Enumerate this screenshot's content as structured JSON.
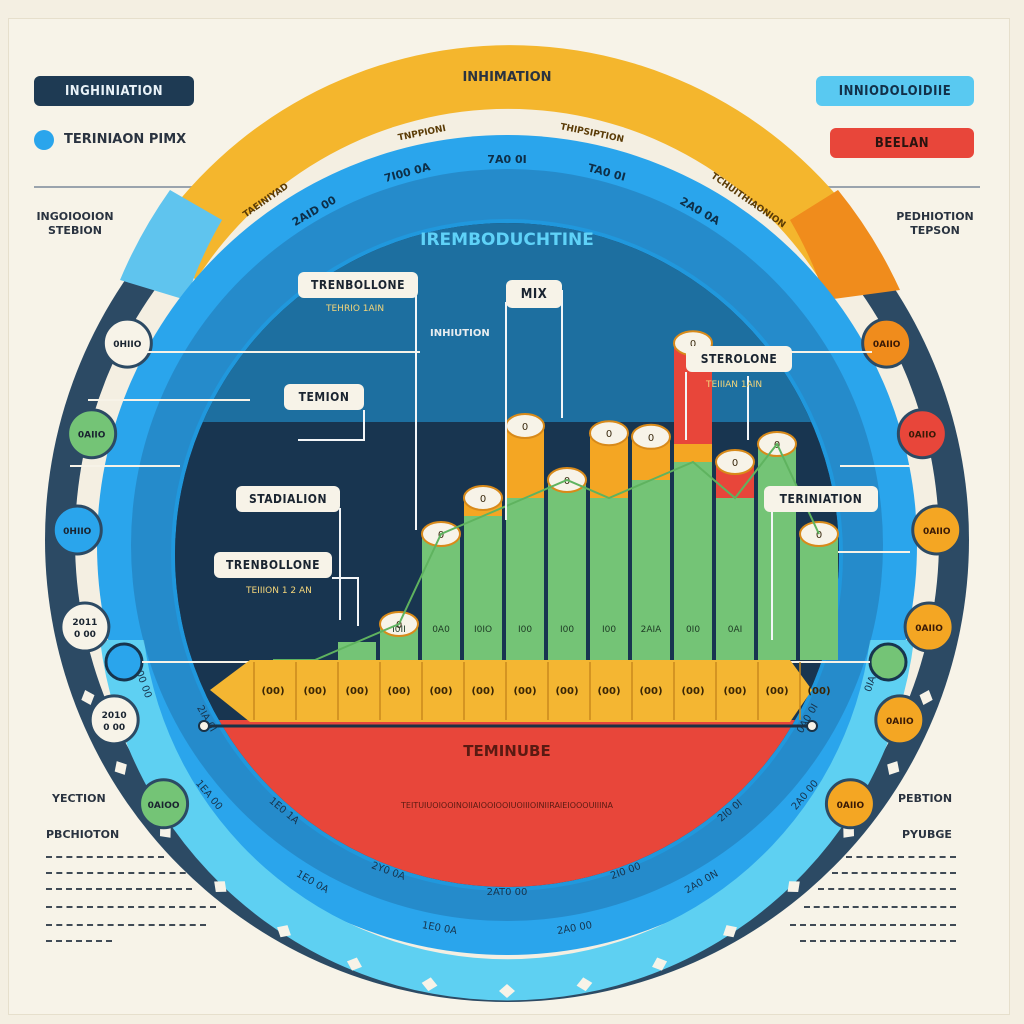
{
  "header": {
    "top_left_label": "INGHINIATION",
    "top_left_legend": "TERINIAON  PIMX",
    "top_right_label": "INNIODOLOIDIIE",
    "top_right_badge": "BEELAN",
    "arc_top_label": "INHIMATION",
    "left_side_label": "INGOIOOION\nSTEBION",
    "right_side_label": "PEDHIOTION\nTEPSON",
    "bottom_left_title": "YECTION",
    "bottom_left_subtitle": "PBCHIOTON",
    "bottom_right_title": "PEBTION",
    "bottom_right_subtitle": "PYUBGE"
  },
  "ring_labels": {
    "outer_top": [
      "TAEINIYAD",
      "TNPPIONI",
      "THIPSIPTION",
      "TCHUITHIAONION"
    ],
    "blue_top": [
      "2AID 00",
      "7I00 0A",
      "7A0 0I",
      "TA0 0I",
      "2A0 0A"
    ],
    "blue_center_title": "IREMBODUCHTINE",
    "red_title": "TEMINUBE",
    "red_sub": "TEITUIUOIOOINOIIAIOOIOOIUOIIIOINIIRAIEIOOOUIIINA",
    "bottom_ticks": [
      "2A00 00",
      "2IA 0I",
      "1EA 00",
      "1E0 1A",
      "1E0 0A",
      "2Y0 0A",
      "1E0 0A",
      "2AT0 00",
      "2A0 00",
      "2I0 00",
      "2A0 0N",
      "2I0 0I",
      "2A0 00",
      "0A0 0I",
      "0IA 0I"
    ]
  },
  "left_dots": [
    "0HIIO",
    "0AIIO",
    "0HIIO",
    "2011\n0 00",
    "2010\n0 00",
    "0AIOO"
  ],
  "right_dots": [
    "0AIIO",
    "0AIIO",
    "0AIIO",
    "0AIIO",
    "0AIIO",
    "0AIIO"
  ],
  "callouts": {
    "trenbollone_top": "TRENBOLLONE",
    "trenbollone_top_sub": "TEHRIO 1AIN",
    "mix": "MIX",
    "inhibition": "INHIUTION",
    "stebolone": "STEROLONE",
    "stebolone_sub": "TEIIIAN 1AIN",
    "temion": "TEMION",
    "stadialion": "STADIALION",
    "trenbollone_bottom": "TRENBOLLONE",
    "trenbollone_bottom_sub": "TEIIION 1 2 AN",
    "termination": "TERINIATION"
  },
  "colors": {
    "green": "#74c476",
    "orange": "#f4a623",
    "red": "#e8463a",
    "yellow": "#f3b632",
    "blue_ring": "#2aa5ec",
    "cyan_ring": "#5ed0f2",
    "navy": "#1e3a53",
    "gold_ring": "#f4b62d",
    "dark_ring": "#2c4a64"
  },
  "chart_data": {
    "type": "bar",
    "title": "IREMBODUCHTINE",
    "categories": [
      "(00)",
      "(00)",
      "(00)",
      "(00)",
      "(00)",
      "(00)",
      "(00)",
      "(00)",
      "(00)",
      "(00)",
      "(00)",
      "(00)",
      "(00)",
      "(00)"
    ],
    "bar_labels": [
      "",
      "",
      "",
      "I0II",
      "0A0",
      "I0IO",
      "I00",
      "I00",
      "I00",
      "2AIA",
      "0I0",
      "0AI",
      "",
      ""
    ],
    "series": [
      {
        "values": [
          0.0,
          0.0,
          0.5,
          1.0,
          3.5,
          4.0,
          4.5,
          5.0,
          4.5,
          5.0,
          5.5,
          4.5,
          6.0,
          3.5
        ]
      },
      {
        "values": [
          0,
          0,
          0,
          0,
          0,
          0.5,
          2.0,
          0,
          1.8,
          1.2,
          0.5,
          0,
          0,
          0
        ]
      },
      {
        "values": [
          0,
          0,
          0,
          0,
          0,
          0,
          0,
          0,
          0,
          0,
          2.8,
          1.0,
          0,
          0
        ]
      }
    ],
    "ylim": [
      0,
      10
    ]
  }
}
